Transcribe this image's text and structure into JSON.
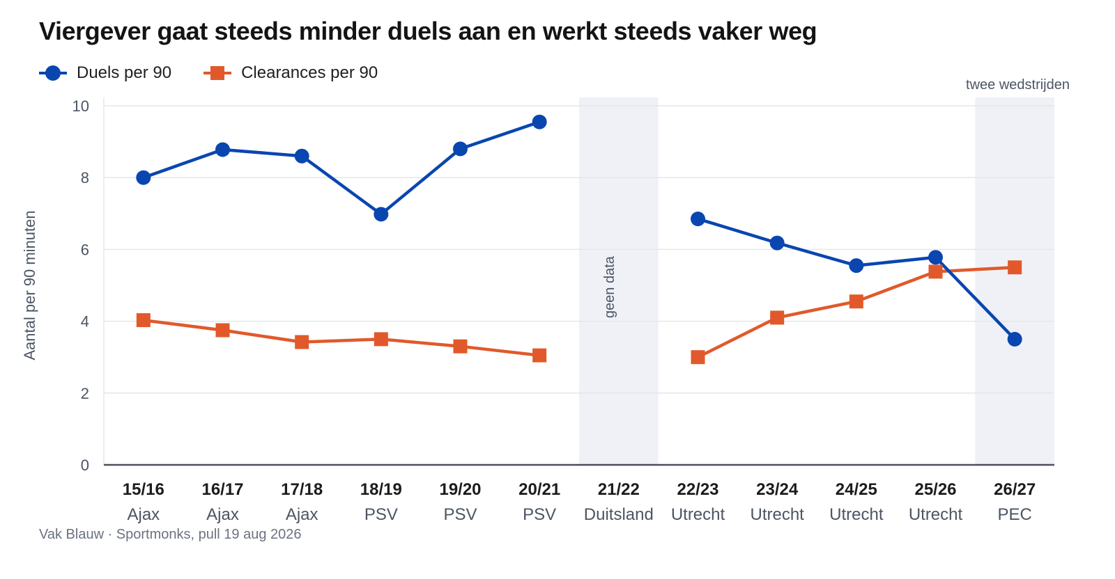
{
  "colors": {
    "duels": "#0a46b0",
    "clearances": "#e1592b",
    "shade": "#eff1f6",
    "grid": "#e4e6ea",
    "axis": "#4b4f58",
    "tick_text": "#4b5563",
    "category_text": "#1c1c1c",
    "team_text": "#4b5563"
  },
  "legend": {
    "duels_label": "Duels per 90",
    "duels_icon": "circle-marker-icon",
    "clearances_label": "Clearances per 90",
    "clearances_icon": "square-marker-icon"
  },
  "source": "Vak Blauw · Sportmonks, pull 19 aug 2026",
  "chart_data": {
    "type": "line",
    "title": "Viergever gaat steeds minder duels aan en werkt steeds vaker weg",
    "xlabel": "",
    "ylabel": "Aantal per 90 minuten",
    "ylim": [
      0,
      10
    ],
    "yticks": [
      0,
      2,
      4,
      6,
      8,
      10
    ],
    "grid": true,
    "legend_position": "top-left",
    "categories": [
      "15/16",
      "16/17",
      "17/18",
      "18/19",
      "19/20",
      "20/21",
      "21/22",
      "22/23",
      "23/24",
      "24/25",
      "25/26",
      "26/27"
    ],
    "teams": [
      "Ajax",
      "Ajax",
      "Ajax",
      "PSV",
      "PSV",
      "PSV",
      "Duitsland",
      "Utrecht",
      "Utrecht",
      "Utrecht",
      "Utrecht",
      "PEC"
    ],
    "series": [
      {
        "name": "Duels per 90",
        "marker": "circle",
        "values": [
          8.0,
          8.78,
          8.6,
          6.98,
          8.8,
          9.55,
          null,
          6.85,
          6.18,
          5.55,
          5.78,
          3.5
        ]
      },
      {
        "name": "Clearances per 90",
        "marker": "square",
        "values": [
          4.03,
          3.75,
          3.42,
          3.5,
          3.3,
          3.05,
          null,
          3.0,
          4.1,
          4.55,
          5.38,
          5.5
        ]
      }
    ],
    "annotations": [
      {
        "category": "21/22",
        "text": "geen data",
        "style": "shaded-band"
      },
      {
        "category": "26/27",
        "text": "twee wedstrijden",
        "style": "shaded-band"
      }
    ]
  }
}
